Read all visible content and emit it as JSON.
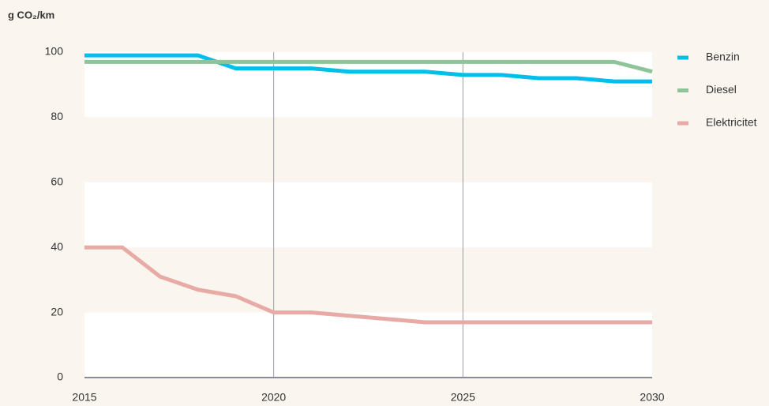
{
  "chart_data": {
    "type": "line",
    "y_label": "g CO₂/km",
    "x": [
      2015,
      2016,
      2017,
      2018,
      2019,
      2020,
      2021,
      2022,
      2023,
      2024,
      2025,
      2026,
      2027,
      2028,
      2029,
      2030
    ],
    "series": [
      {
        "name": "Benzin",
        "color": "#00bfea",
        "values": [
          99,
          99,
          99,
          99,
          95,
          95,
          95,
          94,
          94,
          94,
          93,
          93,
          92,
          92,
          91,
          91
        ]
      },
      {
        "name": "Diesel",
        "color": "#8fc49a",
        "values": [
          97,
          97,
          97,
          97,
          97,
          97,
          97,
          97,
          97,
          97,
          97,
          97,
          97,
          97,
          97,
          94
        ]
      },
      {
        "name": "Elektricitet",
        "color": "#e8aaa5",
        "values": [
          40,
          40,
          31,
          27,
          25,
          20,
          20,
          19,
          18,
          17,
          17,
          17,
          17,
          17,
          17,
          17
        ]
      }
    ],
    "xlim": [
      2015,
      2030
    ],
    "xticks": [
      2015,
      2020,
      2025,
      2030
    ],
    "ylim": [
      0,
      100
    ],
    "yticks": [
      0,
      20,
      40,
      60,
      80,
      100
    ],
    "grid": true,
    "legend": "right"
  }
}
